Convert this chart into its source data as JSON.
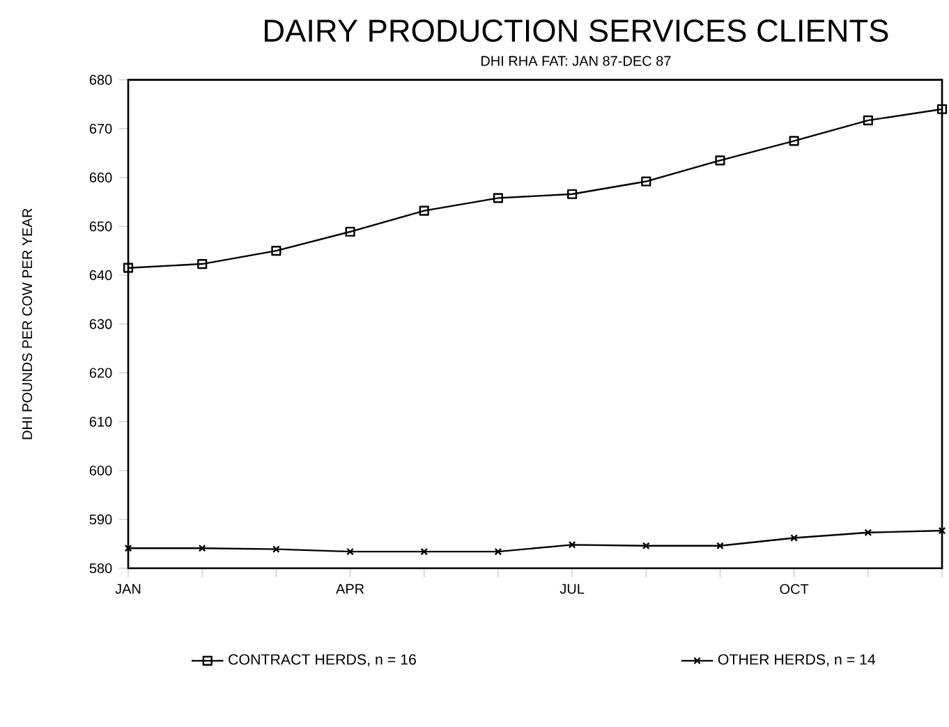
{
  "chart_data": {
    "type": "line",
    "title": "DAIRY PRODUCTION SERVICES CLIENTS",
    "subtitle": "DHI RHA FAT: JAN 87-DEC 87",
    "ylabel": "DHI POUNDS PER COW PER YEAR",
    "categories": [
      "JAN",
      null,
      null,
      "APR",
      null,
      null,
      "JUL",
      null,
      null,
      "OCT",
      null,
      null
    ],
    "series": [
      {
        "name": "CONTRACT HERDS, n = 16",
        "color": "#000000",
        "marker": "square",
        "values": [
          641.5,
          642.3,
          645,
          648.9,
          653.2,
          655.8,
          656.6,
          659.2,
          663.5,
          667.5,
          671.7,
          674
        ]
      },
      {
        "name": "OTHER HERDS, n = 14",
        "color": "#000000",
        "marker": "cross",
        "values": [
          584.1,
          584.1,
          583.9,
          583.4,
          583.4,
          583.4,
          584.8,
          584.6,
          584.6,
          586.2,
          587.3,
          587.7
        ]
      }
    ],
    "ylim": [
      580,
      680
    ],
    "yticks": [
      580,
      590,
      600,
      610,
      620,
      630,
      640,
      650,
      660,
      670,
      680
    ],
    "grid": false,
    "legend": "bottom",
    "line_style": "solid"
  }
}
